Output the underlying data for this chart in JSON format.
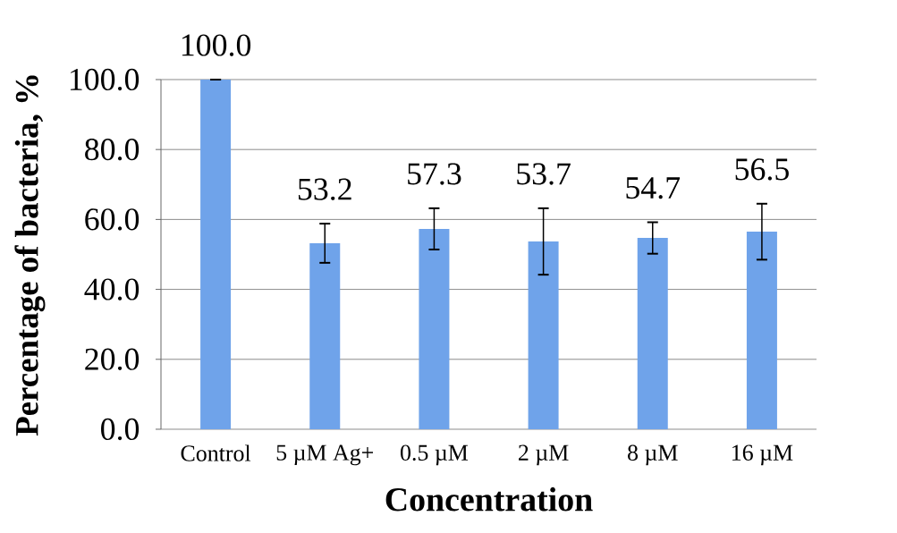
{
  "chart_data": {
    "type": "bar",
    "xlabel": "Concentration",
    "ylabel": "Percentage of bacteria, %",
    "categories": [
      "Control",
      "5 µM Ag+",
      "0.5 µM",
      "2 µM",
      "8 µM",
      "16 µM"
    ],
    "values": [
      100.0,
      53.2,
      57.3,
      53.7,
      54.7,
      56.5
    ],
    "errors": [
      0,
      5.6,
      5.9,
      9.5,
      4.5,
      8.0
    ],
    "value_labels": [
      "100.0",
      "53.2",
      "57.3",
      "53.7",
      "54.7",
      "56.5"
    ],
    "color": "#6fa3ea",
    "ylim": [
      0,
      100
    ],
    "yticks": [
      {
        "value": 0,
        "label": "0.0"
      },
      {
        "value": 20,
        "label": "20.0"
      },
      {
        "value": 40,
        "label": "40.0"
      },
      {
        "value": 60,
        "label": "60.0"
      },
      {
        "value": 80,
        "label": "80.0"
      },
      {
        "value": 100,
        "label": "100.0"
      }
    ],
    "grid": "y"
  }
}
